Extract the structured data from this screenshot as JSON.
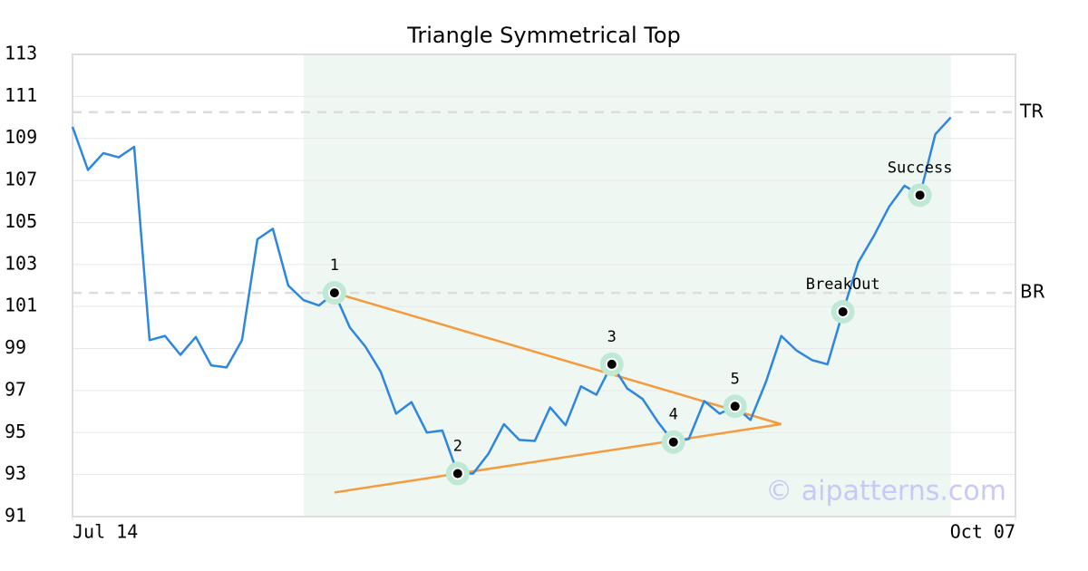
{
  "chart_data": {
    "type": "line",
    "title": "Triangle Symmetrical Top",
    "x": [
      0,
      1,
      2,
      3,
      4,
      5,
      6,
      7,
      8,
      9,
      10,
      11,
      12,
      13,
      14,
      15,
      16,
      17,
      18,
      19,
      20,
      21,
      22,
      23,
      24,
      25,
      26,
      27,
      28,
      29,
      30,
      31,
      32,
      33,
      34,
      35,
      36,
      37,
      38,
      39,
      40,
      41,
      42,
      43,
      44,
      45,
      46,
      47,
      48,
      49,
      50,
      51,
      52,
      53,
      54,
      55,
      56,
      57
    ],
    "values": [
      109.55,
      107.5,
      108.3,
      108.1,
      108.6,
      99.4,
      99.6,
      98.7,
      99.55,
      98.2,
      98.1,
      99.4,
      104.2,
      104.7,
      102.0,
      101.3,
      101.05,
      101.65,
      100.0,
      99.1,
      97.9,
      95.9,
      96.45,
      95.0,
      95.1,
      93.05,
      93.05,
      94.0,
      95.4,
      94.65,
      94.6,
      96.2,
      95.35,
      97.2,
      96.8,
      98.25,
      97.1,
      96.6,
      95.5,
      94.55,
      94.7,
      96.5,
      95.9,
      96.25,
      95.6,
      97.4,
      99.6,
      98.9,
      98.45,
      98.25,
      100.75,
      103.1,
      104.35,
      105.75,
      106.75,
      106.3,
      109.2,
      110.0
    ],
    "color": "#2e86de",
    "xlim": [
      0,
      61.2
    ],
    "xticks": [
      {
        "value": 0,
        "label": "Jul 14"
      },
      {
        "value": 61.2,
        "label": "Oct 07"
      }
    ],
    "ylim": [
      91,
      113
    ],
    "yticks": [
      91,
      93,
      95,
      97,
      99,
      101,
      103,
      105,
      107,
      109,
      111,
      113
    ],
    "grid": true,
    "shaded_x": [
      15,
      57
    ],
    "shade_color": "#eef7f2",
    "reference_lines": [
      {
        "label": "TR",
        "value": 110.25
      },
      {
        "label": "BR",
        "value": 101.65
      }
    ],
    "trendline_color": "#f59b3e",
    "trendlines": [
      {
        "x": [
          17,
          46
        ],
        "y": [
          101.65,
          95.4
        ]
      },
      {
        "x": [
          17,
          46
        ],
        "y": [
          92.15,
          95.4
        ]
      }
    ],
    "pattern_color": "#bfe9d5",
    "patterns": [
      {
        "label": "1",
        "x": 17,
        "y": 101.65
      },
      {
        "label": "2",
        "x": 25,
        "y": 93.05
      },
      {
        "label": "3",
        "x": 35,
        "y": 98.25
      },
      {
        "label": "4",
        "x": 39,
        "y": 94.55
      },
      {
        "label": "5",
        "x": 43,
        "y": 96.25
      },
      {
        "label": "BreakOut",
        "x": 50,
        "y": 100.75
      },
      {
        "label": "Success",
        "x": 55,
        "y": 106.3
      }
    ],
    "watermark": "© aipatterns.com"
  }
}
